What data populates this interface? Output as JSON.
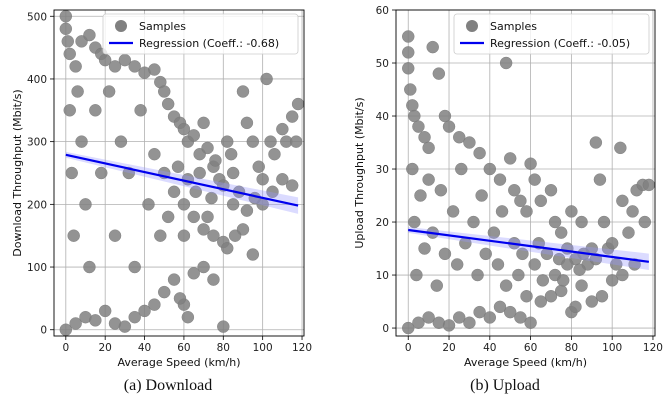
{
  "chart_data": [
    {
      "type": "scatter",
      "caption": "(a) Download",
      "xlabel": "Average Speed (km/h)",
      "ylabel": "Download Throughput (Mbit/s)",
      "xlim": [
        -6,
        121
      ],
      "ylim": [
        -10,
        510
      ],
      "xticks": [
        0,
        20,
        40,
        60,
        80,
        100,
        120
      ],
      "yticks": [
        0,
        100,
        200,
        300,
        400,
        500
      ],
      "grid": true,
      "legend_position": "top-right",
      "colors": {
        "samples": "#808080",
        "regression": "#0000ee",
        "band": "#9999ff"
      },
      "series": [
        {
          "name": "Samples",
          "kind": "scatter",
          "points": [
            [
              0,
              500
            ],
            [
              0,
              480
            ],
            [
              1,
              460
            ],
            [
              2,
              440
            ],
            [
              5,
              420
            ],
            [
              8,
              460
            ],
            [
              12,
              470
            ],
            [
              15,
              450
            ],
            [
              18,
              440
            ],
            [
              20,
              430
            ],
            [
              25,
              420
            ],
            [
              30,
              430
            ],
            [
              35,
              420
            ],
            [
              40,
              410
            ],
            [
              45,
              415
            ],
            [
              48,
              395
            ],
            [
              50,
              380
            ],
            [
              52,
              360
            ],
            [
              55,
              340
            ],
            [
              58,
              330
            ],
            [
              60,
              320
            ],
            [
              62,
              300
            ],
            [
              65,
              310
            ],
            [
              68,
              280
            ],
            [
              70,
              330
            ],
            [
              72,
              290
            ],
            [
              75,
              260
            ],
            [
              78,
              240
            ],
            [
              80,
              230
            ],
            [
              82,
              300
            ],
            [
              85,
              250
            ],
            [
              88,
              220
            ],
            [
              90,
              380
            ],
            [
              92,
              330
            ],
            [
              95,
              300
            ],
            [
              98,
              260
            ],
            [
              100,
              240
            ],
            [
              102,
              400
            ],
            [
              104,
              300
            ],
            [
              106,
              280
            ],
            [
              110,
              320
            ],
            [
              112,
              300
            ],
            [
              115,
              340
            ],
            [
              118,
              360
            ],
            [
              117,
              300
            ],
            [
              60,
              200
            ],
            [
              65,
              180
            ],
            [
              70,
              160
            ],
            [
              75,
              150
            ],
            [
              80,
              140
            ],
            [
              82,
              130
            ],
            [
              85,
              200
            ],
            [
              90,
              160
            ],
            [
              95,
              120
            ],
            [
              100,
              200
            ],
            [
              105,
              220
            ],
            [
              110,
              240
            ],
            [
              115,
              230
            ],
            [
              0,
              0
            ],
            [
              5,
              10
            ],
            [
              10,
              20
            ],
            [
              15,
              15
            ],
            [
              20,
              30
            ],
            [
              25,
              10
            ],
            [
              30,
              5
            ],
            [
              35,
              20
            ],
            [
              40,
              30
            ],
            [
              45,
              40
            ],
            [
              50,
              60
            ],
            [
              55,
              80
            ],
            [
              60,
              40
            ],
            [
              65,
              90
            ],
            [
              70,
              100
            ],
            [
              75,
              80
            ],
            [
              80,
              5
            ],
            [
              62,
              20
            ],
            [
              58,
              50
            ],
            [
              2,
              350
            ],
            [
              3,
              250
            ],
            [
              4,
              150
            ],
            [
              6,
              380
            ],
            [
              8,
              300
            ],
            [
              10,
              200
            ],
            [
              12,
              100
            ],
            [
              15,
              350
            ],
            [
              18,
              250
            ],
            [
              22,
              380
            ],
            [
              25,
              150
            ],
            [
              28,
              300
            ],
            [
              32,
              250
            ],
            [
              35,
              100
            ],
            [
              38,
              350
            ],
            [
              42,
              200
            ],
            [
              45,
              280
            ],
            [
              48,
              150
            ],
            [
              50,
              250
            ],
            [
              52,
              180
            ],
            [
              55,
              220
            ],
            [
              57,
              260
            ],
            [
              60,
              150
            ],
            [
              62,
              240
            ],
            [
              66,
              220
            ],
            [
              68,
              250
            ],
            [
              72,
              180
            ],
            [
              74,
              210
            ],
            [
              76,
              270
            ],
            [
              84,
              280
            ],
            [
              86,
              150
            ],
            [
              92,
              190
            ],
            [
              96,
              210
            ]
          ]
        },
        {
          "name": "Regression (Coeff.: -0.68)",
          "kind": "line",
          "x": [
            0,
            118
          ],
          "y": [
            279,
            198
          ]
        }
      ]
    },
    {
      "type": "scatter",
      "caption": "(b) Upload",
      "xlabel": "Average Speed (km/h)",
      "ylabel": "Upload Throughput (Mbit/s)",
      "xlim": [
        -6,
        121
      ],
      "ylim": [
        -1.5,
        60
      ],
      "xticks": [
        0,
        20,
        40,
        60,
        80,
        100,
        120
      ],
      "yticks": [
        0,
        10,
        20,
        30,
        40,
        50,
        60
      ],
      "grid": true,
      "legend_position": "top-right",
      "colors": {
        "samples": "#808080",
        "regression": "#0000ee",
        "band": "#9999ff"
      },
      "series": [
        {
          "name": "Samples",
          "kind": "scatter",
          "points": [
            [
              0,
              55
            ],
            [
              0,
              52
            ],
            [
              0,
              49
            ],
            [
              1,
              45
            ],
            [
              2,
              42
            ],
            [
              3,
              40
            ],
            [
              5,
              38
            ],
            [
              8,
              36
            ],
            [
              10,
              34
            ],
            [
              12,
              53
            ],
            [
              15,
              48
            ],
            [
              18,
              40
            ],
            [
              20,
              38
            ],
            [
              25,
              36
            ],
            [
              30,
              35
            ],
            [
              35,
              33
            ],
            [
              40,
              30
            ],
            [
              45,
              28
            ],
            [
              48,
              50
            ],
            [
              50,
              32
            ],
            [
              52,
              26
            ],
            [
              55,
              24
            ],
            [
              58,
              22
            ],
            [
              60,
              31
            ],
            [
              62,
              28
            ],
            [
              65,
              24
            ],
            [
              70,
              26
            ],
            [
              72,
              20
            ],
            [
              75,
              18
            ],
            [
              78,
              15
            ],
            [
              80,
              22
            ],
            [
              82,
              13
            ],
            [
              85,
              20
            ],
            [
              88,
              12
            ],
            [
              90,
              15
            ],
            [
              92,
              35
            ],
            [
              94,
              28
            ],
            [
              96,
              20
            ],
            [
              98,
              15
            ],
            [
              100,
              16
            ],
            [
              102,
              12
            ],
            [
              104,
              34
            ],
            [
              105,
              24
            ],
            [
              108,
              18
            ],
            [
              110,
              22
            ],
            [
              112,
              26
            ],
            [
              115,
              27
            ],
            [
              118,
              27
            ],
            [
              116,
              20
            ],
            [
              111,
              12
            ],
            [
              0,
              0
            ],
            [
              5,
              1
            ],
            [
              10,
              2
            ],
            [
              15,
              1
            ],
            [
              20,
              0.5
            ],
            [
              25,
              2
            ],
            [
              30,
              1
            ],
            [
              35,
              3
            ],
            [
              40,
              2
            ],
            [
              45,
              4
            ],
            [
              50,
              3
            ],
            [
              55,
              2
            ],
            [
              60,
              1
            ],
            [
              65,
              5
            ],
            [
              70,
              6
            ],
            [
              75,
              7
            ],
            [
              80,
              3
            ],
            [
              82,
              4
            ],
            [
              85,
              8
            ],
            [
              90,
              5
            ],
            [
              95,
              6
            ],
            [
              100,
              9
            ],
            [
              105,
              10
            ],
            [
              2,
              30
            ],
            [
              3,
              20
            ],
            [
              4,
              10
            ],
            [
              6,
              25
            ],
            [
              8,
              15
            ],
            [
              10,
              28
            ],
            [
              12,
              18
            ],
            [
              14,
              8
            ],
            [
              16,
              26
            ],
            [
              18,
              14
            ],
            [
              22,
              22
            ],
            [
              24,
              12
            ],
            [
              26,
              30
            ],
            [
              28,
              16
            ],
            [
              32,
              20
            ],
            [
              34,
              10
            ],
            [
              36,
              25
            ],
            [
              38,
              14
            ],
            [
              42,
              18
            ],
            [
              44,
              12
            ],
            [
              46,
              22
            ],
            [
              48,
              8
            ],
            [
              52,
              16
            ],
            [
              54,
              10
            ],
            [
              56,
              14
            ],
            [
              58,
              6
            ],
            [
              62,
              12
            ],
            [
              64,
              16
            ],
            [
              66,
              9
            ],
            [
              68,
              14
            ],
            [
              72,
              10
            ],
            [
              74,
              13
            ],
            [
              76,
              9
            ],
            [
              78,
              12
            ],
            [
              84,
              11
            ],
            [
              86,
              14
            ],
            [
              92,
              13
            ]
          ]
        },
        {
          "name": "Regression (Coeff.: -0.05)",
          "kind": "line",
          "x": [
            0,
            118
          ],
          "y": [
            18.5,
            12.5
          ]
        }
      ]
    }
  ]
}
